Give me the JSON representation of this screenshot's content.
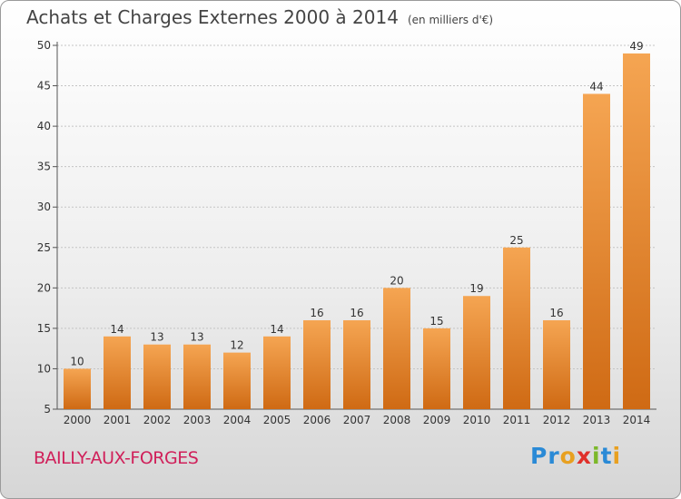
{
  "chart_data": {
    "type": "bar",
    "title": "Achats et Charges Externes 2000 à 2014",
    "subtitle": "(en milliers d'€)",
    "categories": [
      "2000",
      "2001",
      "2002",
      "2003",
      "2004",
      "2005",
      "2006",
      "2007",
      "2008",
      "2009",
      "2010",
      "2011",
      "2012",
      "2013",
      "2014"
    ],
    "values": [
      10,
      14,
      13,
      13,
      12,
      14,
      16,
      16,
      20,
      15,
      19,
      25,
      16,
      44,
      49
    ],
    "ylim": [
      5,
      50
    ],
    "yticks": [
      5,
      10,
      15,
      20,
      25,
      30,
      35,
      40,
      45,
      50
    ],
    "grid": true,
    "bar_color_top": "#f5a552",
    "bar_color_bottom": "#cf6a14"
  },
  "footer": {
    "place": "BAILLY-AUX-FORGES",
    "logo": "Proxiti",
    "logo_colors": [
      "#2a8ad6",
      "#2a8ad6",
      "#e8a020",
      "#e0302a",
      "#7cb82a",
      "#2a8ad6",
      "#e8a020"
    ]
  }
}
